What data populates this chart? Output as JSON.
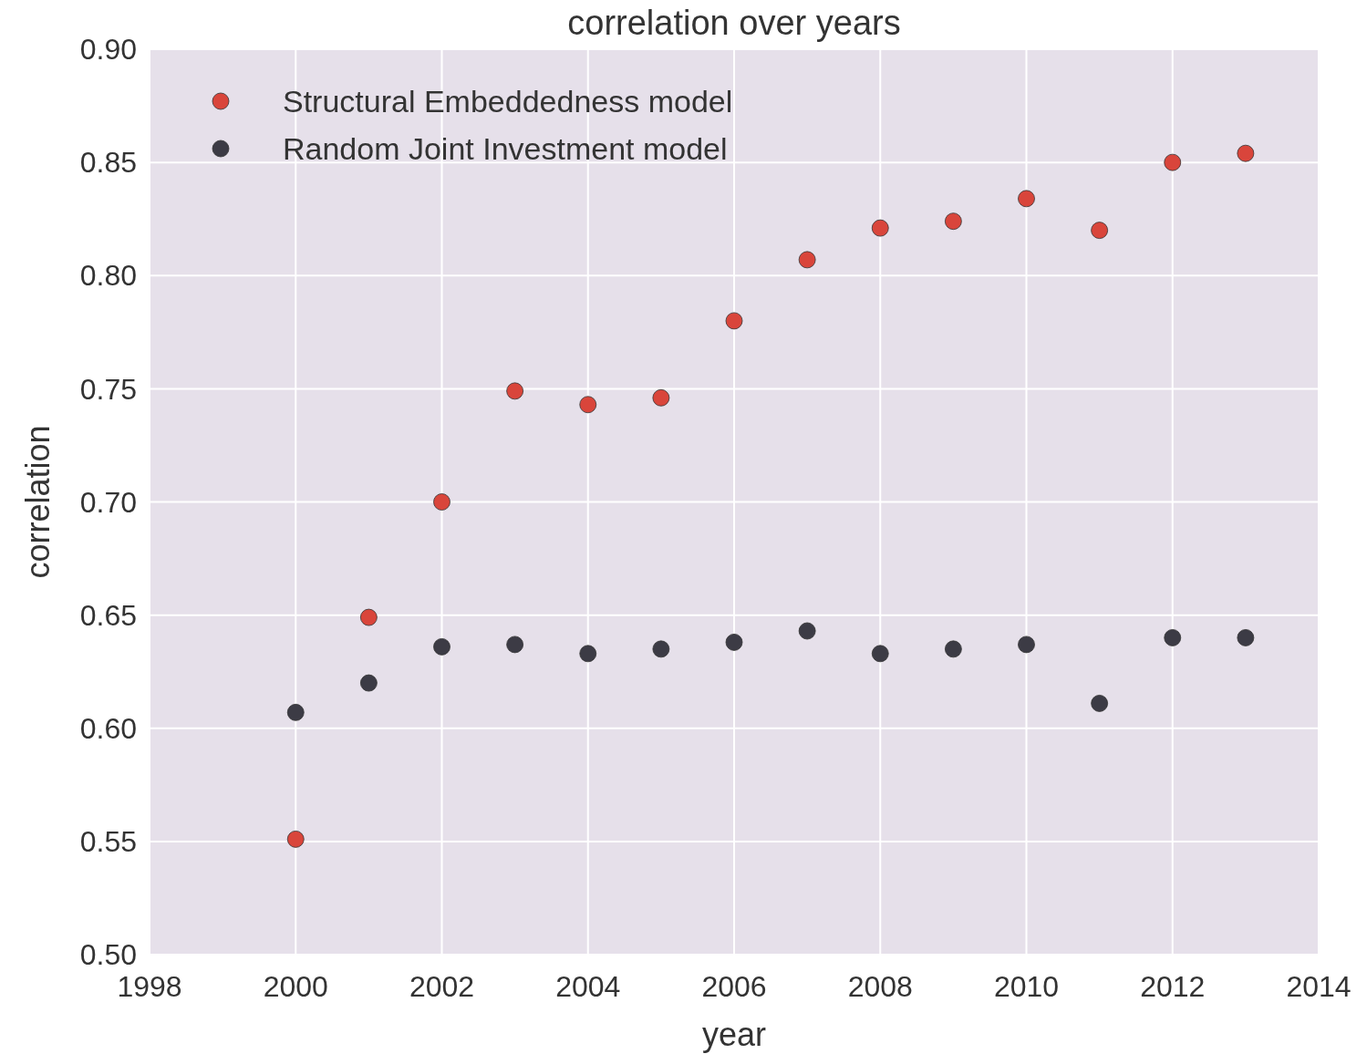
{
  "chart_data": {
    "type": "scatter",
    "title": "correlation over years",
    "xlabel": "year",
    "ylabel": "correlation",
    "x": [
      2000,
      2001,
      2002,
      2003,
      2004,
      2005,
      2006,
      2007,
      2008,
      2009,
      2010,
      2011,
      2012,
      2013
    ],
    "series": [
      {
        "name": "Structural Embeddedness model",
        "color": "#d9453b",
        "values": [
          0.551,
          0.649,
          0.7,
          0.749,
          0.743,
          0.746,
          0.78,
          0.807,
          0.821,
          0.824,
          0.834,
          0.82,
          0.85,
          0.854
        ]
      },
      {
        "name": "Random Joint Investment model",
        "color": "#3c3b45",
        "values": [
          0.607,
          0.62,
          0.636,
          0.637,
          0.633,
          0.635,
          0.638,
          0.643,
          0.633,
          0.635,
          0.637,
          0.611,
          0.64,
          0.64
        ]
      }
    ],
    "xlim": [
      1998,
      2014
    ],
    "xticks": [
      1998,
      2000,
      2002,
      2004,
      2006,
      2008,
      2010,
      2012,
      2014
    ],
    "ylim": [
      0.5,
      0.9
    ],
    "yticks": [
      {
        "value": 0.5,
        "label": "0.50"
      },
      {
        "value": 0.55,
        "label": "0.55"
      },
      {
        "value": 0.6,
        "label": "0.60"
      },
      {
        "value": 0.65,
        "label": "0.65"
      },
      {
        "value": 0.7,
        "label": "0.70"
      },
      {
        "value": 0.75,
        "label": "0.75"
      },
      {
        "value": 0.8,
        "label": "0.80"
      },
      {
        "value": 0.85,
        "label": "0.85"
      },
      {
        "value": 0.9,
        "label": "0.90"
      }
    ],
    "grid": true,
    "legend": "top left",
    "marker": "circle"
  }
}
